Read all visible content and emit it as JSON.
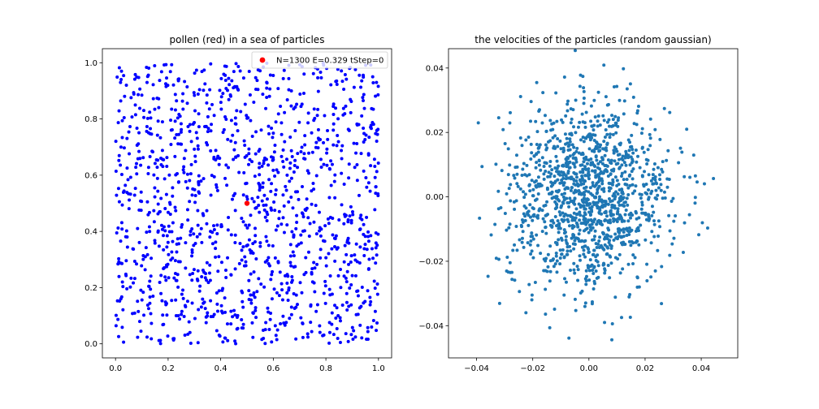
{
  "chart_data": [
    {
      "type": "scatter",
      "title": "pollen (red) in a sea of particles",
      "xlabel": "",
      "ylabel": "",
      "xlim": [
        -0.05,
        1.05
      ],
      "ylim": [
        -0.05,
        1.05
      ],
      "xticks": [
        0.0,
        0.2,
        0.4,
        0.6,
        0.8,
        1.0
      ],
      "yticks": [
        0.0,
        0.2,
        0.4,
        0.6,
        0.8,
        1.0
      ],
      "xtick_labels": [
        "0.0",
        "0.2",
        "0.4",
        "0.6",
        "0.8",
        "1.0"
      ],
      "ytick_labels": [
        "0.0",
        "0.2",
        "0.4",
        "0.6",
        "0.8",
        "1.0"
      ],
      "grid": false,
      "legend_position": "top-right",
      "legend": [
        {
          "label": "N=1300 E=0.329 tStep=0",
          "color": "#ff0000"
        }
      ],
      "series": [
        {
          "color": "#0000ff",
          "distribution": "uniform",
          "count": 1300,
          "x_range": [
            0.0,
            1.0
          ],
          "y_range": [
            0.0,
            1.0
          ]
        },
        {
          "name": "N=1300 E=0.329 tStep=0",
          "color": "#ff0000",
          "points": [
            {
              "x": 0.5,
              "y": 0.5
            }
          ]
        }
      ]
    },
    {
      "type": "scatter",
      "title": "the velocities of the particles (random gaussian)",
      "xlabel": "",
      "ylabel": "",
      "xlim": [
        -0.05,
        0.053
      ],
      "ylim": [
        -0.05,
        0.046
      ],
      "xticks": [
        -0.04,
        -0.02,
        0.0,
        0.02,
        0.04
      ],
      "yticks": [
        -0.04,
        -0.02,
        0.0,
        0.02,
        0.04
      ],
      "xtick_labels": [
        "−0.04",
        "−0.02",
        "0.00",
        "0.02",
        "0.04"
      ],
      "ytick_labels": [
        "−0.04",
        "−0.02",
        "0.00",
        "0.02",
        "0.04"
      ],
      "grid": false,
      "series": [
        {
          "color": "#1f77b4",
          "distribution": "gaussian",
          "count": 1300,
          "mean": [
            0.0,
            0.0
          ],
          "std": [
            0.0145,
            0.0145
          ],
          "clip_radius": 0.047
        }
      ]
    }
  ]
}
